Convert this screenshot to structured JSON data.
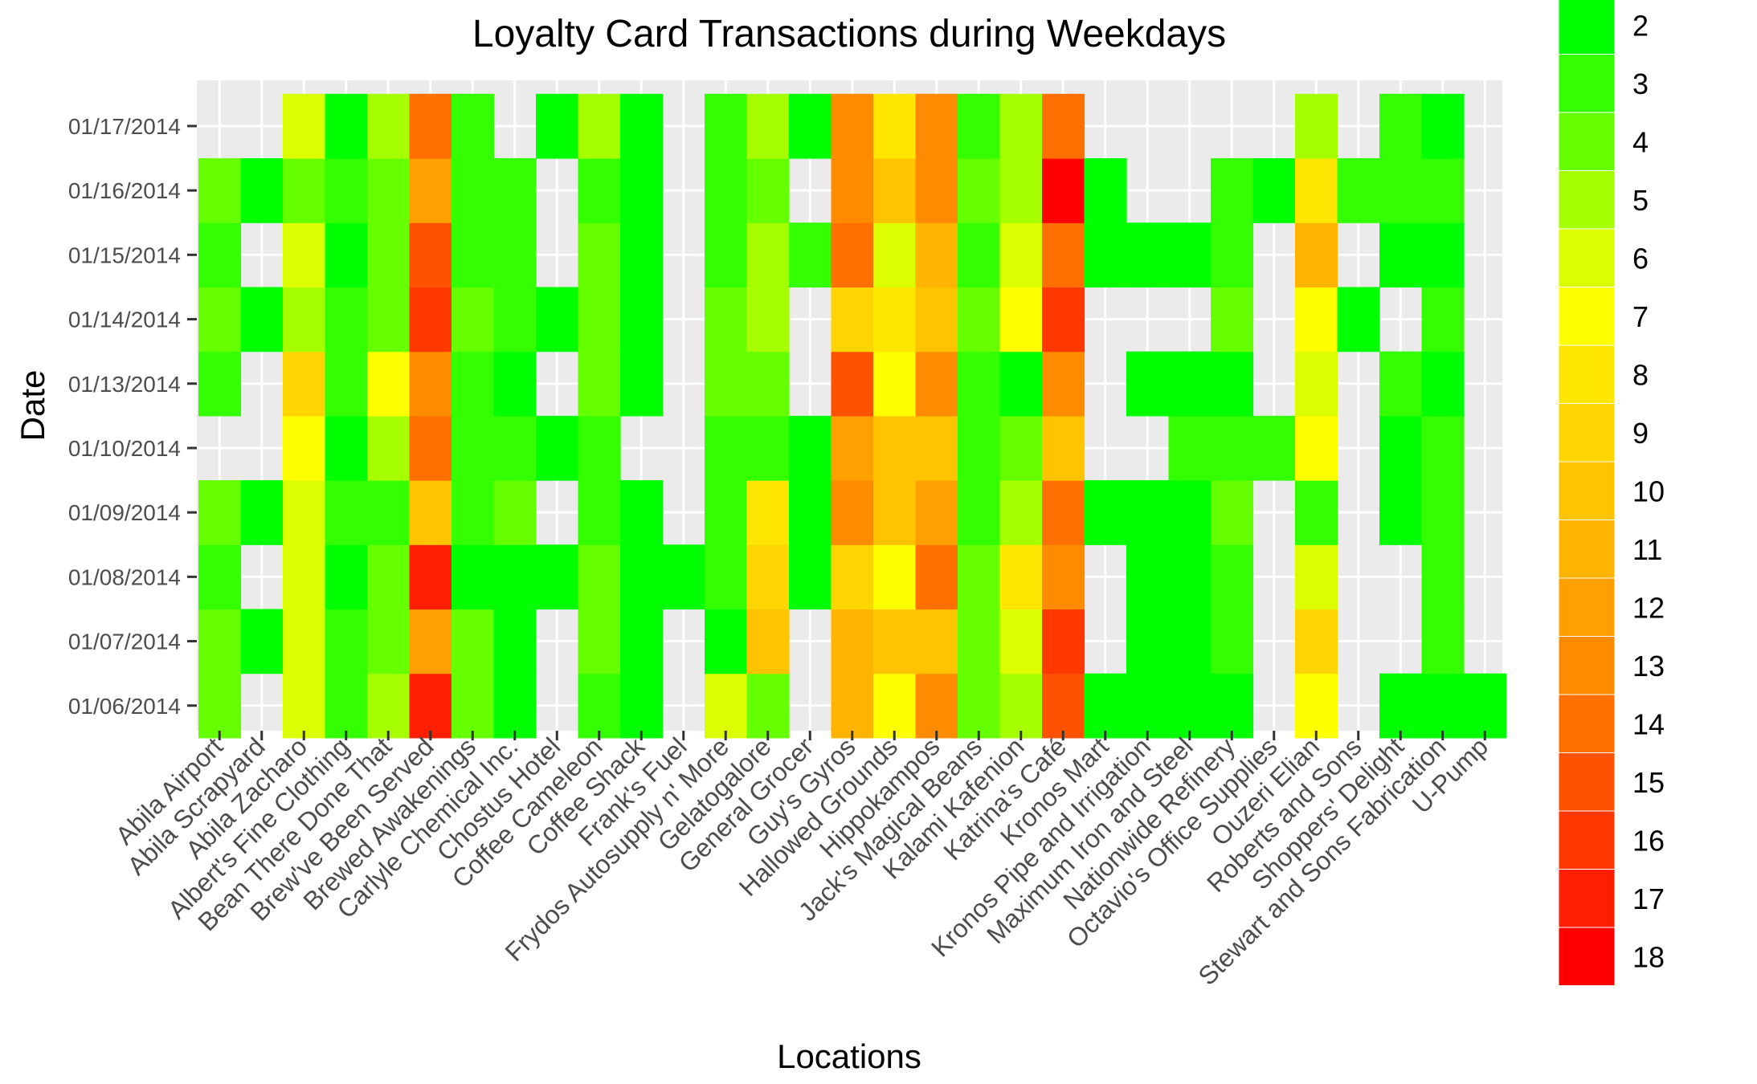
{
  "chart_data": {
    "type": "heatmap",
    "title": "Loyalty Card Transactions during Weekdays",
    "xlabel": "Locations",
    "ylabel": "Date",
    "x": [
      "Abila Airport",
      "Abila Scrapyard",
      "Abila Zacharo",
      "Albert's Fine Clothing",
      "Bean There Done That",
      "Brew've Been Served",
      "Brewed Awakenings",
      "Carlyle Chemical Inc.",
      "Chostus Hotel",
      "Coffee Cameleon",
      "Coffee Shack",
      "Frank's Fuel",
      "Frydos Autosupply n' More",
      "Gelatogalore",
      "General Grocer",
      "Guy's Gyros",
      "Hallowed Grounds",
      "Hippokampos",
      "Jack's Magical Beans",
      "Kalami Kafenion",
      "Katrina's Café",
      "Kronos Mart",
      "Kronos Pipe and Irrigation",
      "Maximum Iron and Steel",
      "Nationwide Refinery",
      "Octavio's Office Supplies",
      "Ouzeri Elian",
      "Roberts and Sons",
      "Shoppers' Delight",
      "Stewart and Sons Fabrication",
      "U-Pump"
    ],
    "y": [
      "01/06/2014",
      "01/07/2014",
      "01/08/2014",
      "01/09/2014",
      "01/10/2014",
      "01/13/2014",
      "01/14/2014",
      "01/15/2014",
      "01/16/2014",
      "01/17/2014"
    ],
    "values": [
      [
        4,
        null,
        6,
        3,
        5,
        17,
        4,
        2,
        null,
        3,
        2,
        null,
        6,
        4,
        null,
        11,
        7,
        13,
        4,
        5,
        15,
        2,
        2,
        2,
        2,
        null,
        7,
        null,
        2,
        2,
        2
      ],
      [
        4,
        2,
        6,
        3,
        4,
        12,
        4,
        2,
        null,
        4,
        2,
        null,
        2,
        10,
        null,
        11,
        10,
        10,
        4,
        6,
        16,
        null,
        2,
        2,
        3,
        null,
        9,
        null,
        null,
        3,
        null
      ],
      [
        3,
        null,
        6,
        2,
        4,
        17,
        2,
        2,
        2,
        4,
        2,
        2,
        3,
        9,
        2,
        9,
        7,
        14,
        4,
        8,
        13,
        null,
        2,
        2,
        3,
        null,
        6,
        null,
        null,
        3,
        null
      ],
      [
        4,
        2,
        6,
        3,
        3,
        10,
        3,
        4,
        null,
        3,
        2,
        null,
        3,
        8,
        2,
        13,
        10,
        12,
        3,
        5,
        14,
        2,
        2,
        2,
        4,
        null,
        3,
        null,
        2,
        3,
        null
      ],
      [
        null,
        null,
        7,
        2,
        5,
        14,
        3,
        3,
        2,
        3,
        null,
        null,
        3,
        3,
        2,
        12,
        10,
        10,
        3,
        4,
        10,
        null,
        null,
        3,
        3,
        3,
        7,
        null,
        2,
        3,
        null
      ],
      [
        3,
        null,
        9,
        3,
        7,
        13,
        3,
        2,
        null,
        4,
        2,
        null,
        4,
        4,
        null,
        15,
        7,
        13,
        3,
        2,
        13,
        null,
        2,
        2,
        2,
        null,
        6,
        null,
        3,
        2,
        null
      ],
      [
        4,
        2,
        5,
        3,
        4,
        16,
        4,
        3,
        2,
        4,
        2,
        null,
        4,
        5,
        null,
        9,
        8,
        10,
        4,
        7,
        16,
        null,
        null,
        null,
        4,
        null,
        7,
        2,
        null,
        3,
        null
      ],
      [
        3,
        null,
        6,
        2,
        4,
        15,
        3,
        3,
        null,
        4,
        2,
        null,
        3,
        5,
        3,
        14,
        6,
        11,
        3,
        6,
        14,
        2,
        2,
        2,
        3,
        null,
        11,
        null,
        2,
        2,
        null
      ],
      [
        4,
        2,
        4,
        3,
        4,
        12,
        3,
        3,
        null,
        3,
        2,
        null,
        3,
        4,
        null,
        13,
        10,
        13,
        4,
        5,
        18,
        2,
        null,
        null,
        3,
        2,
        8,
        3,
        3,
        3,
        null
      ],
      [
        null,
        null,
        6,
        2,
        5,
        14,
        3,
        null,
        2,
        5,
        2,
        null,
        3,
        5,
        2,
        13,
        8,
        13,
        3,
        5,
        14,
        null,
        null,
        null,
        null,
        null,
        5,
        null,
        3,
        2,
        null
      ]
    ],
    "legend": {
      "placement": "right",
      "labels": [
        "2",
        "3",
        "4",
        "5",
        "6",
        "7",
        "8",
        "9",
        "10",
        "11",
        "12",
        "13",
        "14",
        "15",
        "16",
        "17",
        "18"
      ],
      "colors": [
        "#00ff00",
        "#33ff00",
        "#66ff00",
        "#a6ff00",
        "#dcff00",
        "#ffff00",
        "#ffe600",
        "#ffd500",
        "#ffc300",
        "#ffb400",
        "#ffa000",
        "#ff8c00",
        "#ff7000",
        "#ff5200",
        "#ff3800",
        "#ff1e00",
        "#ff0000"
      ]
    },
    "grid": true,
    "panel_background": "#ebebeb"
  }
}
